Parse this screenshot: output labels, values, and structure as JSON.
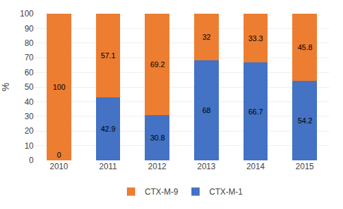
{
  "chart_data": {
    "type": "bar",
    "stacked": true,
    "categories": [
      "2010",
      "2011",
      "2012",
      "2013",
      "2014",
      "2015"
    ],
    "series": [
      {
        "name": "CTX-M-1",
        "color": "#4472C4",
        "values": [
          0,
          42.9,
          30.8,
          68,
          66.7,
          54.2
        ]
      },
      {
        "name": "CTX-M-9",
        "color": "#ED7D31",
        "values": [
          100,
          57.1,
          69.2,
          32,
          33.3,
          45.8
        ]
      }
    ],
    "ylabel": "%",
    "ylim": [
      0,
      100
    ],
    "yticks": [
      0,
      10,
      20,
      30,
      40,
      50,
      60,
      70,
      80,
      90,
      100
    ],
    "grid": true,
    "data_labels": true,
    "legend": "bottom"
  }
}
